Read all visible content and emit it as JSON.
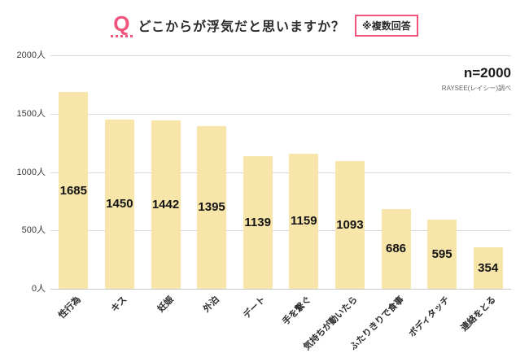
{
  "title": {
    "q_mark": "Q",
    "text": "どこからが浮気だと思いますか？",
    "note": "※複数回答"
  },
  "source": {
    "n_label": "n=2000",
    "credit": "RAYSEE(レイシー)調べ"
  },
  "colors": {
    "accent_pink": "#F0537B",
    "bar_fill": "#F7E5A9",
    "grid": "#D9D9D9",
    "text": "#2B2B2B"
  },
  "chart_data": {
    "type": "bar",
    "title": "どこからが浮気だと思いますか？",
    "subtitle": "※複数回答",
    "categories": [
      "性行為",
      "キス",
      "妊娠",
      "外泊",
      "デート",
      "手を繋ぐ",
      "気持ちが動いたら",
      "ふたりきりで食事",
      "ボディタッチ",
      "連絡をとる"
    ],
    "values": [
      1685,
      1450,
      1442,
      1395,
      1139,
      1159,
      1093,
      686,
      595,
      354
    ],
    "xlabel": "",
    "ylabel": "人",
    "ylim": [
      0,
      2000
    ],
    "ytick_step": 500,
    "ytick_labels": [
      "0人",
      "500人",
      "1000人",
      "1500人",
      "2000人"
    ],
    "bar_color": "#F7E5A9",
    "grid": true,
    "legend_position": "none",
    "annotations": [
      "n=2000",
      "RAYSEE(レイシー)調べ"
    ]
  }
}
